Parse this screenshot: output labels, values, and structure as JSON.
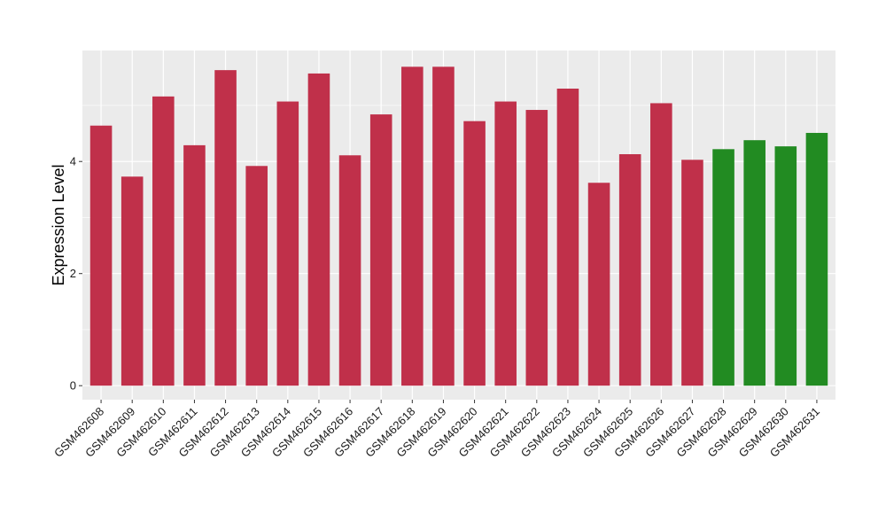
{
  "chart_data": {
    "type": "bar",
    "title": "",
    "xlabel": "",
    "ylabel": "Expression Level",
    "ylim": [
      -0.25,
      5.98
    ],
    "yticks": [
      0,
      2,
      4
    ],
    "grid": true,
    "categories": [
      "GSM462608",
      "GSM462609",
      "GSM462610",
      "GSM462611",
      "GSM462612",
      "GSM462613",
      "GSM462614",
      "GSM462615",
      "GSM462616",
      "GSM462617",
      "GSM462618",
      "GSM462619",
      "GSM462620",
      "GSM462621",
      "GSM462622",
      "GSM462623",
      "GSM462624",
      "GSM462625",
      "GSM462626",
      "GSM462627",
      "GSM462628",
      "GSM462629",
      "GSM462630",
      "GSM462631"
    ],
    "values": [
      4.64,
      3.73,
      5.16,
      4.29,
      5.63,
      3.92,
      5.07,
      5.57,
      4.11,
      4.84,
      5.69,
      5.69,
      4.72,
      5.07,
      4.92,
      5.3,
      3.62,
      4.13,
      5.04,
      4.03,
      4.22,
      4.38,
      4.27,
      4.51
    ],
    "bar_colors": [
      "#c0304a",
      "#c0304a",
      "#c0304a",
      "#c0304a",
      "#c0304a",
      "#c0304a",
      "#c0304a",
      "#c0304a",
      "#c0304a",
      "#c0304a",
      "#c0304a",
      "#c0304a",
      "#c0304a",
      "#c0304a",
      "#c0304a",
      "#c0304a",
      "#c0304a",
      "#c0304a",
      "#c0304a",
      "#c0304a",
      "#228b22",
      "#228b22",
      "#228b22",
      "#228b22"
    ],
    "panel_background": "#ebebeb",
    "grid_color": "#ffffff"
  }
}
